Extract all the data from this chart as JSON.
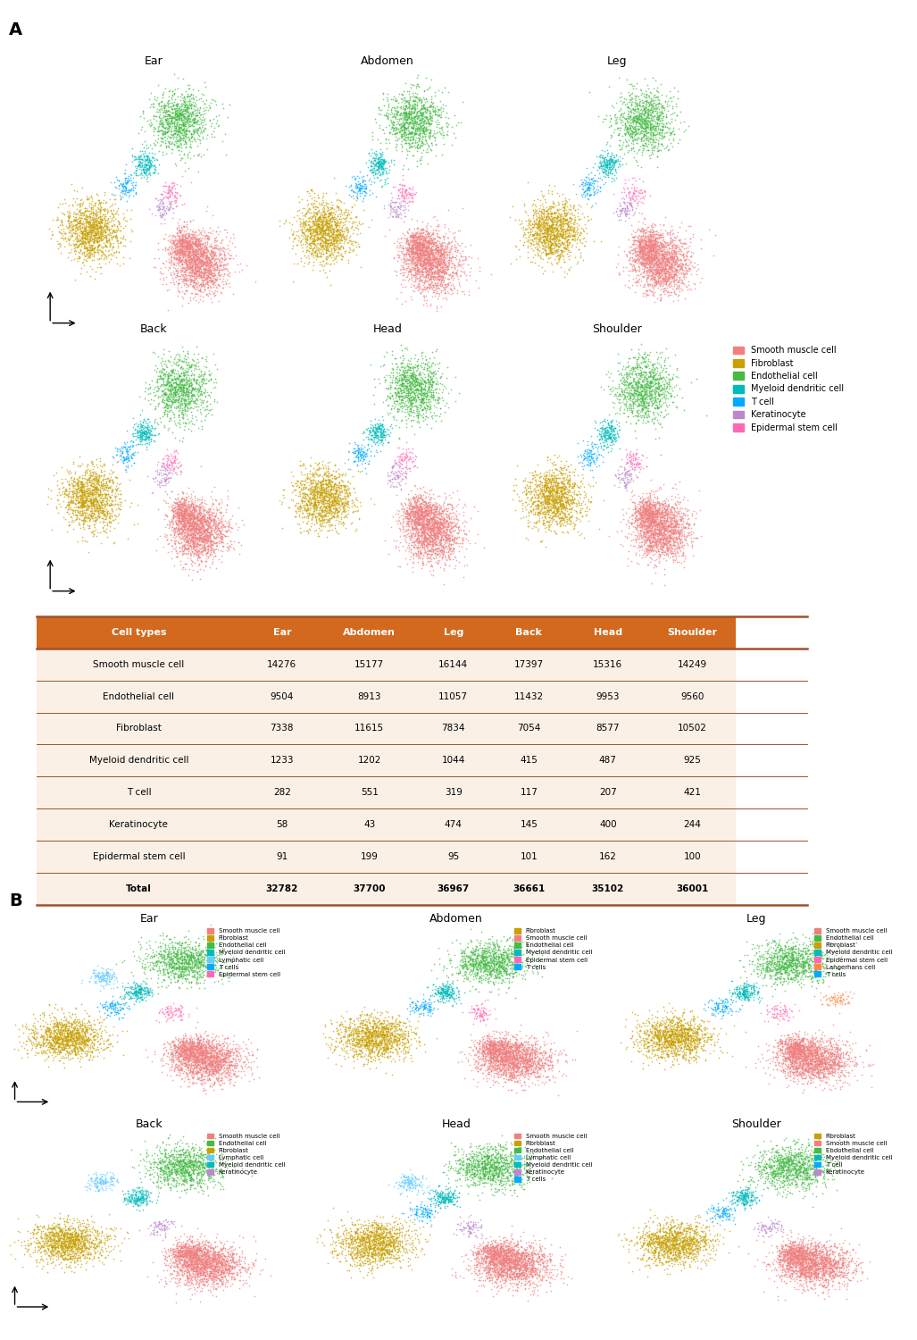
{
  "panel_A_label": "A",
  "panel_B_label": "B",
  "cell_types_A": [
    "Smooth muscle cell",
    "Fibroblast",
    "Endothelial cell",
    "Myeloid dendritic cell",
    "T cell",
    "Keratinocyte",
    "Epidermal stem cell"
  ],
  "colors_A": [
    "#F08080",
    "#C8A000",
    "#44BB44",
    "#00BBBB",
    "#00AAFF",
    "#BB88CC",
    "#FF69B4"
  ],
  "section_A_titles_row1": [
    "Ear",
    "Abdomen",
    "Leg"
  ],
  "section_A_titles_row2": [
    "Back",
    "Head",
    "Shoulder"
  ],
  "table_header": [
    "Cell types",
    "Ear",
    "Abdomen",
    "Leg",
    "Back",
    "Head",
    "Shoulder"
  ],
  "table_data": [
    [
      "Smooth muscle cell",
      "14276",
      "15177",
      "16144",
      "17397",
      "15316",
      "14249"
    ],
    [
      "Endothelial cell",
      "9504",
      "8913",
      "11057",
      "11432",
      "9953",
      "9560"
    ],
    [
      "Fibroblast",
      "7338",
      "11615",
      "7834",
      "7054",
      "8577",
      "10502"
    ],
    [
      "Myeloid dendritic cell",
      "1233",
      "1202",
      "1044",
      "415",
      "487",
      "925"
    ],
    [
      "T cell",
      "282",
      "551",
      "319",
      "117",
      "207",
      "421"
    ],
    [
      "Keratinocyte",
      "58",
      "43",
      "474",
      "145",
      "400",
      "244"
    ],
    [
      "Epidermal stem cell",
      "91",
      "199",
      "95",
      "101",
      "162",
      "100"
    ],
    [
      "Total",
      "32782",
      "37700",
      "36967",
      "36661",
      "35102",
      "36001"
    ]
  ],
  "table_header_bg": "#D2691E",
  "table_row_bg": "#FAF0E6",
  "table_line_color": "#A0522D",
  "color_map": {
    "Smooth muscle cell": "#F08080",
    "Fibroblast": "#C8A000",
    "Endothelial cell": "#44BB44",
    "Myeloid dendritic cell": "#00BBBB",
    "T cell": "#00AAFF",
    "T cells": "#00AAFF",
    "Keratinocyte": "#BB88CC",
    "Epidermal stem cell": "#FF69B4",
    "Lymphatic cell": "#66CCFF",
    "Langerhans cell": "#FF8844"
  },
  "section_B_configs": {
    "Ear": {
      "cell_types": [
        "Smooth muscle cell",
        "Fibroblast",
        "Endothelial cell",
        "Myeloid dendritic cell",
        "Lymphatic cell",
        "T cells",
        "Epidermal stem cell"
      ],
      "colors": [
        "#F08080",
        "#C8A000",
        "#44BB44",
        "#00BBBB",
        "#66CCFF",
        "#00AAFF",
        "#FF69B4"
      ]
    },
    "Abdomen": {
      "cell_types": [
        "Fibroblast",
        "Smooth muscle cell",
        "Endothelial cell",
        "Myeloid dendritic cell",
        "Epidermal stem cell",
        "T cells"
      ],
      "colors": [
        "#C8A000",
        "#F08080",
        "#44BB44",
        "#00BBBB",
        "#FF69B4",
        "#00AAFF"
      ]
    },
    "Leg": {
      "cell_types": [
        "Smooth muscle cell",
        "Endothelial cell",
        "Fibroblast",
        "Myeloid dendritic cell",
        "Epidermal stem cell",
        "Langerhans cell",
        "T cells"
      ],
      "colors": [
        "#F08080",
        "#44BB44",
        "#C8A000",
        "#00BBBB",
        "#FF69B4",
        "#FF8844",
        "#00AAFF"
      ]
    },
    "Back": {
      "cell_types": [
        "Smooth muscle cell",
        "Endothelial cell",
        "Fibroblast",
        "Lymphatic cell",
        "Myeloid dendritic cell",
        "Keratinocyte"
      ],
      "colors": [
        "#F08080",
        "#44BB44",
        "#C8A000",
        "#66CCFF",
        "#00BBBB",
        "#BB88CC"
      ]
    },
    "Head": {
      "cell_types": [
        "Smooth muscle cell",
        "Fibroblast",
        "Endothelial cell",
        "Lymphatic cell",
        "Myeloid dendritic cell",
        "Keratinocyte",
        "T cells"
      ],
      "colors": [
        "#F08080",
        "#C8A000",
        "#44BB44",
        "#66CCFF",
        "#00BBBB",
        "#BB88CC",
        "#00AAFF"
      ]
    },
    "Shoulder": {
      "cell_types": [
        "Fibroblast",
        "Smooth muscle cell",
        "Endothelial cell",
        "Myeloid dendritic cell",
        "T cell",
        "Keratinocyte"
      ],
      "colors": [
        "#C8A000",
        "#F08080",
        "#44BB44",
        "#00BBBB",
        "#00AAFF",
        "#BB88CC"
      ]
    }
  }
}
